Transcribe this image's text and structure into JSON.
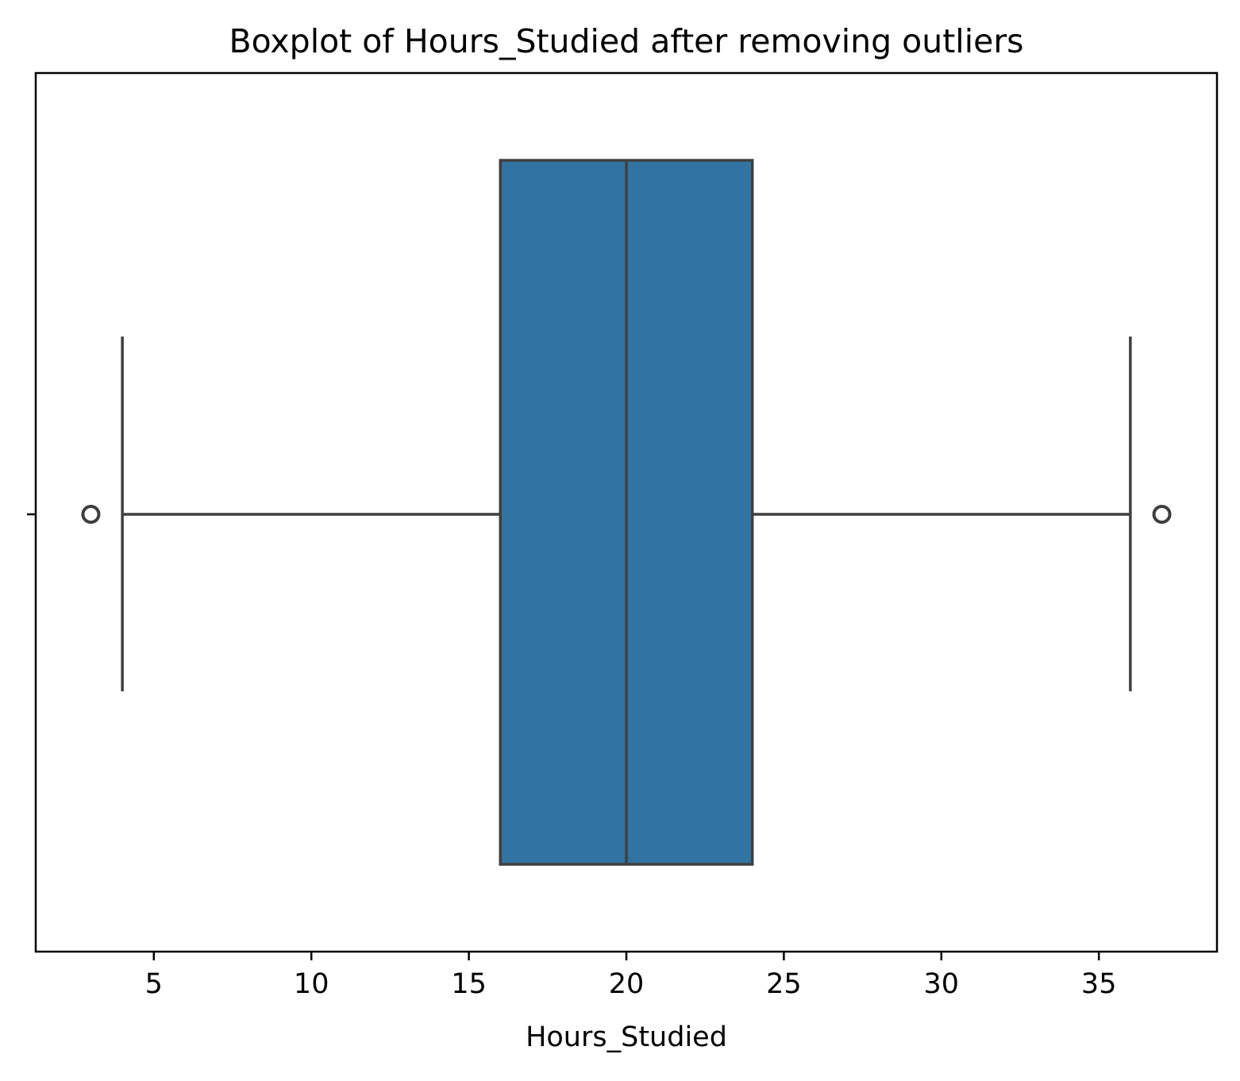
{
  "chart_data": {
    "type": "box",
    "title": "Boxplot of Hours_Studied after removing outliers",
    "xlabel": "Hours_Studied",
    "ylabel": "",
    "orientation": "horizontal",
    "xlim": [
      1.25,
      38.75
    ],
    "xticks": [
      5,
      10,
      15,
      20,
      25,
      30,
      35
    ],
    "xtick_labels": [
      "5",
      "10",
      "15",
      "20",
      "25",
      "30",
      "35"
    ],
    "grid": false,
    "legend": "none",
    "series": [
      {
        "whisker_low": 4,
        "q1": 16,
        "median": 20,
        "q3": 24,
        "whisker_high": 36,
        "outliers": [
          3,
          37
        ]
      }
    ],
    "colors": {
      "box_fill": "#3274a1",
      "line": "#3f3f3f",
      "axes": "#000000"
    }
  }
}
